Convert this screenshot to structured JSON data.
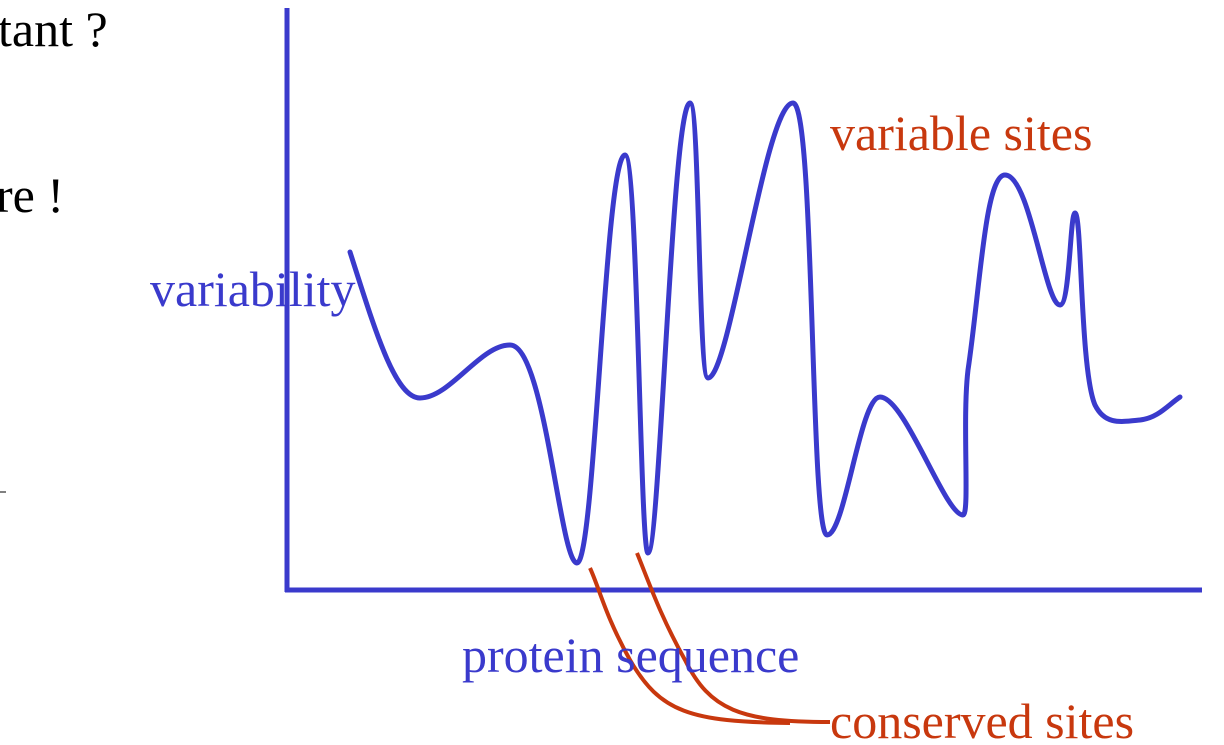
{
  "slide_text": {
    "line1": "tant ?",
    "line2": "re !"
  },
  "diagram": {
    "y_axis_label": "variability",
    "x_axis_label": "protein sequence",
    "annotations": {
      "variable": "variable sites",
      "conserved": "conserved sites"
    }
  }
}
